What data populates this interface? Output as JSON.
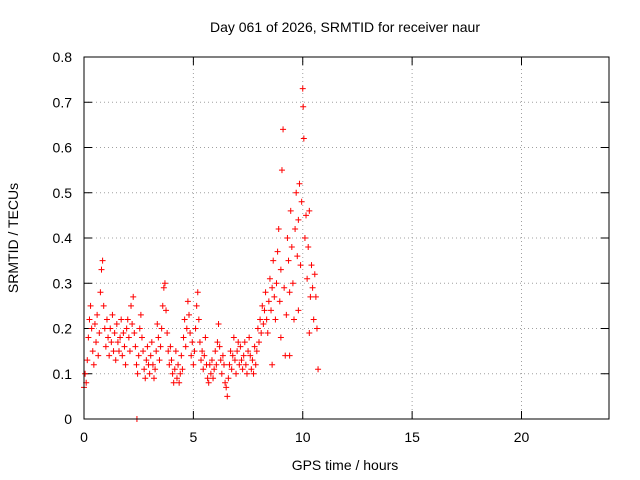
{
  "chart_data": {
    "type": "scatter",
    "title": "Day 061 of 2026, SRMTID for receiver naur",
    "xlabel": "GPS time / hours",
    "ylabel": "SRMTID / TECUs",
    "xlim": [
      0,
      24
    ],
    "ylim": [
      0,
      0.8
    ],
    "xticks": [
      0,
      5,
      10,
      15,
      20
    ],
    "yticks": [
      0,
      0.1,
      0.2,
      0.3,
      0.4,
      0.5,
      0.6,
      0.7,
      0.8
    ],
    "xtick_labels": [
      "0",
      "5",
      "10",
      "15",
      "20"
    ],
    "ytick_labels": [
      "0",
      "0.1",
      "0.2",
      "0.3",
      "0.4",
      "0.5",
      "0.6",
      "0.7",
      "0.8"
    ],
    "grid": true,
    "marker": "+",
    "series": [
      {
        "name": "SRMTID",
        "color": "#ff0000",
        "points": [
          [
            0.0,
            0.07
          ],
          [
            0.05,
            0.1
          ],
          [
            0.1,
            0.08
          ],
          [
            0.15,
            0.13
          ],
          [
            0.2,
            0.18
          ],
          [
            0.25,
            0.22
          ],
          [
            0.3,
            0.25
          ],
          [
            0.35,
            0.2
          ],
          [
            0.4,
            0.15
          ],
          [
            0.45,
            0.12
          ],
          [
            0.5,
            0.21
          ],
          [
            0.55,
            0.17
          ],
          [
            0.6,
            0.23
          ],
          [
            0.65,
            0.14
          ],
          [
            0.7,
            0.19
          ],
          [
            0.75,
            0.28
          ],
          [
            0.8,
            0.33
          ],
          [
            0.85,
            0.35
          ],
          [
            0.9,
            0.25
          ],
          [
            0.95,
            0.2
          ],
          [
            1.0,
            0.16
          ],
          [
            1.05,
            0.22
          ],
          [
            1.1,
            0.18
          ],
          [
            1.15,
            0.14
          ],
          [
            1.2,
            0.2
          ],
          [
            1.25,
            0.17
          ],
          [
            1.3,
            0.23
          ],
          [
            1.35,
            0.15
          ],
          [
            1.4,
            0.19
          ],
          [
            1.45,
            0.13
          ],
          [
            1.5,
            0.21
          ],
          [
            1.55,
            0.17
          ],
          [
            1.6,
            0.15
          ],
          [
            1.65,
            0.18
          ],
          [
            1.7,
            0.22
          ],
          [
            1.75,
            0.14
          ],
          [
            1.8,
            0.19
          ],
          [
            1.85,
            0.16
          ],
          [
            1.9,
            0.12
          ],
          [
            1.95,
            0.2
          ],
          [
            2.0,
            0.22
          ],
          [
            2.05,
            0.18
          ],
          [
            2.1,
            0.15
          ],
          [
            2.15,
            0.25
          ],
          [
            2.2,
            0.21
          ],
          [
            2.25,
            0.27
          ],
          [
            2.3,
            0.19
          ],
          [
            2.35,
            0.16
          ],
          [
            2.4,
            0.12
          ],
          [
            2.45,
            0.1
          ],
          [
            2.5,
            0.14
          ],
          [
            2.55,
            0.2
          ],
          [
            2.6,
            0.23
          ],
          [
            2.65,
            0.18
          ],
          [
            2.7,
            0.15
          ],
          [
            2.75,
            0.11
          ],
          [
            2.8,
            0.09
          ],
          [
            2.85,
            0.13
          ],
          [
            2.9,
            0.16
          ],
          [
            2.95,
            0.12
          ],
          [
            3.0,
            0.1
          ],
          [
            3.05,
            0.14
          ],
          [
            3.1,
            0.17
          ],
          [
            3.15,
            0.12
          ],
          [
            3.2,
            0.09
          ],
          [
            3.25,
            0.11
          ],
          [
            3.3,
            0.15
          ],
          [
            3.35,
            0.21
          ],
          [
            3.4,
            0.18
          ],
          [
            3.45,
            0.13
          ],
          [
            3.5,
            0.16
          ],
          [
            3.55,
            0.2
          ],
          [
            3.6,
            0.25
          ],
          [
            3.65,
            0.29
          ],
          [
            3.7,
            0.3
          ],
          [
            3.75,
            0.24
          ],
          [
            3.8,
            0.19
          ],
          [
            3.85,
            0.15
          ],
          [
            3.9,
            0.12
          ],
          [
            3.95,
            0.16
          ],
          [
            4.0,
            0.13
          ],
          [
            4.05,
            0.1
          ],
          [
            4.1,
            0.08
          ],
          [
            4.15,
            0.11
          ],
          [
            4.2,
            0.15
          ],
          [
            4.25,
            0.09
          ],
          [
            4.3,
            0.12
          ],
          [
            4.35,
            0.08
          ],
          [
            4.4,
            0.1
          ],
          [
            4.45,
            0.14
          ],
          [
            4.5,
            0.11
          ],
          [
            4.55,
            0.18
          ],
          [
            4.6,
            0.22
          ],
          [
            4.65,
            0.16
          ],
          [
            4.7,
            0.2
          ],
          [
            4.75,
            0.26
          ],
          [
            4.8,
            0.23
          ],
          [
            4.85,
            0.19
          ],
          [
            4.9,
            0.14
          ],
          [
            4.95,
            0.17
          ],
          [
            5.0,
            0.12
          ],
          [
            5.05,
            0.15
          ],
          [
            5.1,
            0.2
          ],
          [
            5.15,
            0.25
          ],
          [
            5.2,
            0.28
          ],
          [
            5.25,
            0.22
          ],
          [
            5.3,
            0.17
          ],
          [
            5.35,
            0.13
          ],
          [
            5.4,
            0.15
          ],
          [
            5.45,
            0.11
          ],
          [
            5.5,
            0.14
          ],
          [
            5.55,
            0.18
          ],
          [
            5.6,
            0.12
          ],
          [
            5.65,
            0.09
          ],
          [
            5.7,
            0.08
          ],
          [
            5.75,
            0.12
          ],
          [
            5.8,
            0.1
          ],
          [
            5.85,
            0.13
          ],
          [
            5.9,
            0.09
          ],
          [
            5.95,
            0.11
          ],
          [
            6.0,
            0.15
          ],
          [
            6.05,
            0.12
          ],
          [
            6.1,
            0.17
          ],
          [
            6.15,
            0.21
          ],
          [
            6.2,
            0.16
          ],
          [
            6.25,
            0.13
          ],
          [
            6.3,
            0.1
          ],
          [
            6.35,
            0.14
          ],
          [
            6.4,
            0.12
          ],
          [
            6.45,
            0.08
          ],
          [
            6.5,
            0.07
          ],
          [
            6.55,
            0.05
          ],
          [
            6.6,
            0.09
          ],
          [
            6.65,
            0.12
          ],
          [
            6.7,
            0.15
          ],
          [
            6.75,
            0.11
          ],
          [
            6.8,
            0.14
          ],
          [
            6.85,
            0.18
          ],
          [
            6.9,
            0.13
          ],
          [
            6.95,
            0.1
          ],
          [
            7.0,
            0.15
          ],
          [
            7.05,
            0.17
          ],
          [
            7.1,
            0.12
          ],
          [
            7.15,
            0.16
          ],
          [
            7.2,
            0.13
          ],
          [
            7.25,
            0.11
          ],
          [
            7.3,
            0.14
          ],
          [
            7.35,
            0.17
          ],
          [
            7.4,
            0.12
          ],
          [
            7.45,
            0.1
          ],
          [
            7.5,
            0.15
          ],
          [
            7.55,
            0.18
          ],
          [
            7.6,
            0.14
          ],
          [
            7.65,
            0.11
          ],
          [
            7.7,
            0.13
          ],
          [
            7.75,
            0.1
          ],
          [
            7.8,
            0.16
          ],
          [
            7.85,
            0.12
          ],
          [
            7.9,
            0.15
          ],
          [
            7.95,
            0.2
          ],
          [
            8.0,
            0.17
          ],
          [
            8.05,
            0.22
          ],
          [
            8.1,
            0.19
          ],
          [
            8.15,
            0.25
          ],
          [
            8.2,
            0.21
          ],
          [
            8.25,
            0.24
          ],
          [
            8.3,
            0.28
          ],
          [
            8.35,
            0.22
          ],
          [
            8.4,
            0.19
          ],
          [
            8.45,
            0.26
          ],
          [
            8.5,
            0.31
          ],
          [
            8.55,
            0.24
          ],
          [
            8.6,
            0.29
          ],
          [
            8.65,
            0.35
          ],
          [
            8.7,
            0.27
          ],
          [
            8.75,
            0.22
          ],
          [
            8.8,
            0.3
          ],
          [
            8.85,
            0.37
          ],
          [
            8.9,
            0.42
          ],
          [
            8.95,
            0.26
          ],
          [
            9.0,
            0.33
          ],
          [
            9.05,
            0.55
          ],
          [
            9.1,
            0.64
          ],
          [
            9.15,
            0.29
          ],
          [
            9.2,
            0.14
          ],
          [
            9.25,
            0.23
          ],
          [
            9.3,
            0.4
          ],
          [
            9.35,
            0.35
          ],
          [
            9.4,
            0.28
          ],
          [
            9.45,
            0.46
          ],
          [
            9.5,
            0.38
          ],
          [
            9.55,
            0.3
          ],
          [
            9.6,
            0.22
          ],
          [
            9.65,
            0.42
          ],
          [
            9.7,
            0.5
          ],
          [
            9.75,
            0.36
          ],
          [
            9.8,
            0.44
          ],
          [
            9.85,
            0.52
          ],
          [
            9.9,
            0.34
          ],
          [
            9.95,
            0.48
          ],
          [
            10.0,
            0.73
          ],
          [
            10.02,
            0.69
          ],
          [
            10.05,
            0.62
          ],
          [
            10.1,
            0.4
          ],
          [
            10.15,
            0.45
          ],
          [
            10.2,
            0.31
          ],
          [
            10.25,
            0.38
          ],
          [
            10.3,
            0.46
          ],
          [
            10.35,
            0.27
          ],
          [
            10.4,
            0.34
          ],
          [
            10.45,
            0.29
          ],
          [
            10.5,
            0.22
          ],
          [
            10.55,
            0.32
          ],
          [
            10.6,
            0.27
          ],
          [
            10.65,
            0.2
          ],
          [
            10.7,
            0.11
          ],
          [
            8.6,
            0.12
          ],
          [
            9.0,
            0.18
          ],
          [
            9.4,
            0.14
          ],
          [
            9.8,
            0.24
          ],
          [
            10.3,
            0.19
          ],
          [
            2.42,
            0.0
          ]
        ]
      }
    ]
  }
}
